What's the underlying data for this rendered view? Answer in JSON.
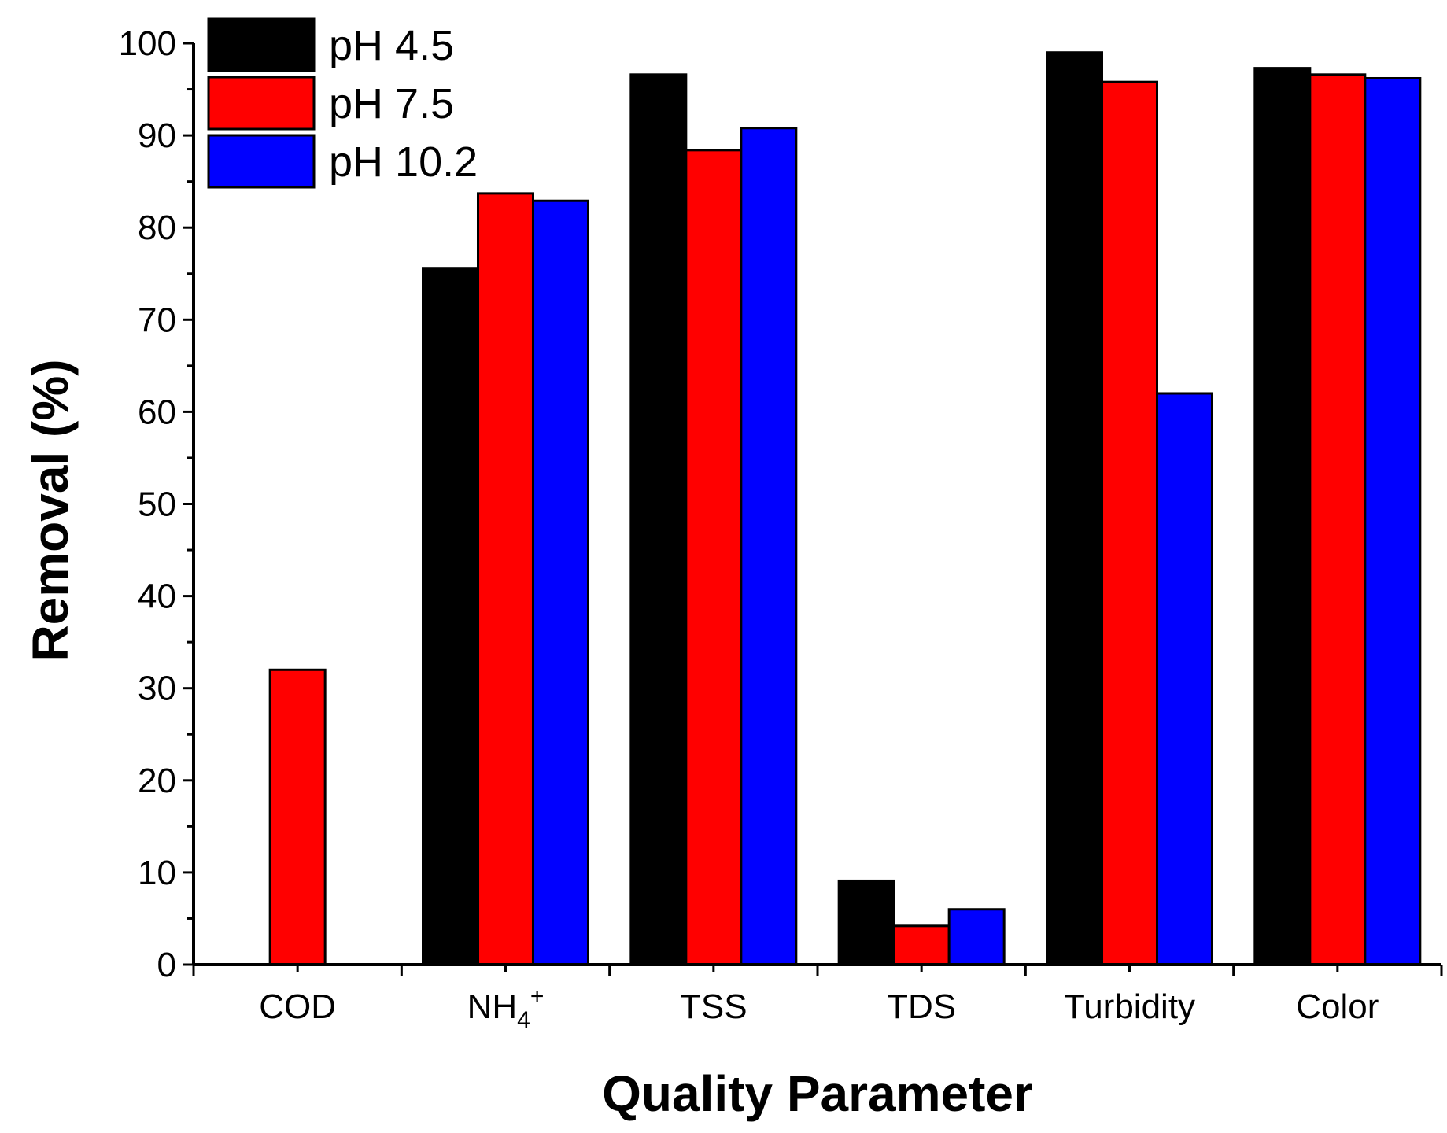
{
  "chart_data": {
    "type": "bar",
    "title": "",
    "xlabel": "Quality Parameter",
    "ylabel": "Removal (%)",
    "ylim": [
      0,
      100
    ],
    "yticks": [
      0,
      10,
      20,
      30,
      40,
      50,
      60,
      70,
      80,
      90,
      100
    ],
    "categories": [
      "COD",
      "NH4+",
      "TSS",
      "TDS",
      "Turbidity",
      "Color"
    ],
    "category_labels": [
      {
        "base": "COD"
      },
      {
        "base": "NH",
        "sub": "4",
        "sup": "+"
      },
      {
        "base": "TSS"
      },
      {
        "base": "TDS"
      },
      {
        "base": "Turbidity"
      },
      {
        "base": "Color"
      }
    ],
    "series": [
      {
        "name": "pH 4.5",
        "color": "#000000",
        "values": [
          0,
          75.6,
          96.6,
          9.1,
          99.0,
          97.3
        ]
      },
      {
        "name": "pH 7.5",
        "color": "#ff0000",
        "values": [
          32.0,
          83.7,
          88.4,
          4.2,
          95.8,
          96.6
        ]
      },
      {
        "name": "pH 10.2",
        "color": "#0000ff",
        "values": [
          0,
          82.9,
          90.8,
          6.0,
          62.0,
          96.2
        ]
      }
    ],
    "legend_position": "top-left",
    "grid": false
  }
}
